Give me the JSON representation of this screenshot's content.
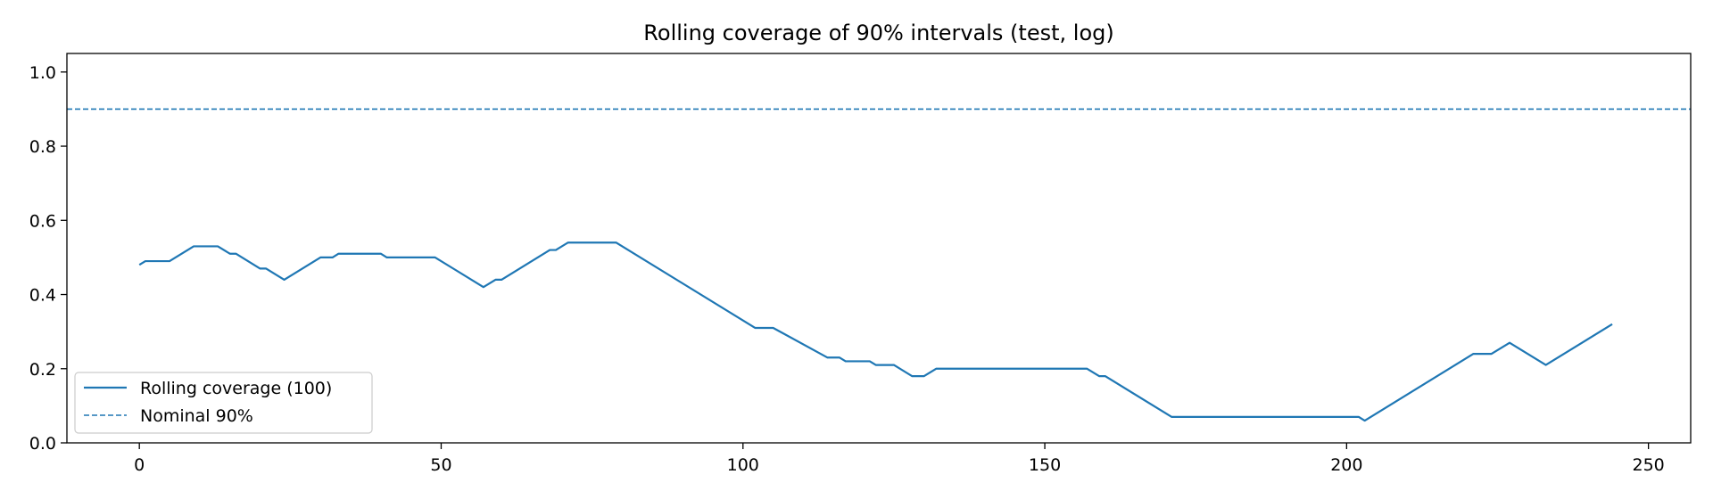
{
  "chart_data": {
    "type": "line",
    "title": "Rolling coverage of 90% intervals (test, log)",
    "xlabel": "",
    "ylabel": "",
    "xlim": [
      -12,
      257
    ],
    "ylim": [
      0.0,
      1.05
    ],
    "xticks": [
      0,
      50,
      100,
      150,
      200,
      250
    ],
    "yticks": [
      0.0,
      0.2,
      0.4,
      0.6,
      0.8,
      1.0
    ],
    "xtick_labels": [
      "0",
      "50",
      "100",
      "150",
      "200",
      "250"
    ],
    "ytick_labels": [
      "0.0",
      "0.2",
      "0.4",
      "0.6",
      "0.8",
      "1.0"
    ],
    "grid": false,
    "legend_position": "lower-left",
    "series": [
      {
        "name": "Rolling coverage (100)",
        "style": "solid",
        "color": "#1f77b4",
        "x": [
          0,
          1,
          5,
          9,
          13,
          15,
          16,
          20,
          21,
          24,
          30,
          31,
          32,
          33,
          40,
          41,
          42,
          49,
          57,
          59,
          60,
          68,
          69,
          71,
          79,
          102,
          105,
          114,
          116,
          117,
          121,
          122,
          125,
          128,
          130,
          131,
          132,
          157,
          159,
          160,
          171,
          202,
          203,
          221,
          224,
          227,
          233,
          244
        ],
        "y": [
          0.48,
          0.49,
          0.49,
          0.53,
          0.53,
          0.51,
          0.51,
          0.47,
          0.47,
          0.44,
          0.5,
          0.5,
          0.5,
          0.51,
          0.51,
          0.5,
          0.5,
          0.5,
          0.42,
          0.44,
          0.44,
          0.52,
          0.52,
          0.54,
          0.54,
          0.31,
          0.31,
          0.23,
          0.23,
          0.22,
          0.22,
          0.21,
          0.21,
          0.18,
          0.18,
          0.19,
          0.2,
          0.2,
          0.18,
          0.18,
          0.07,
          0.07,
          0.06,
          0.24,
          0.24,
          0.27,
          0.21,
          0.32
        ]
      },
      {
        "name": "Nominal 90%",
        "style": "dashed",
        "color": "#1f77b4",
        "hline": 0.9
      }
    ]
  }
}
